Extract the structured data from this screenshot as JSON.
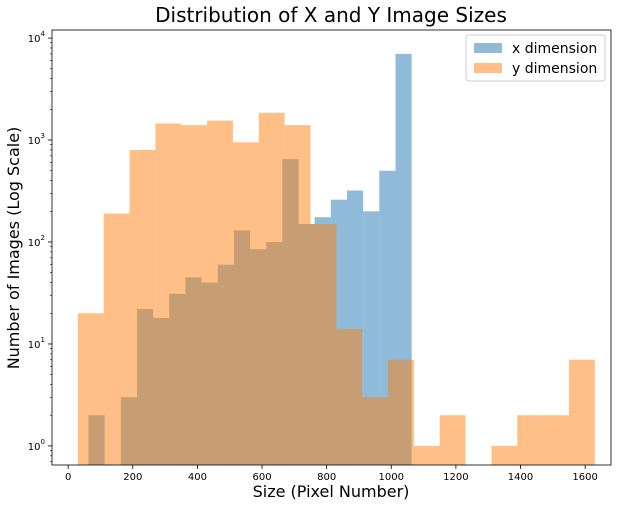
{
  "chart_data": {
    "type": "bar",
    "title": "Distribution of X and Y Image Sizes",
    "xlabel": "Size (Pixel Number)",
    "ylabel": "Number of Images (Log Scale)",
    "yscale": "log",
    "xlim": [
      -50,
      1680
    ],
    "ylim": [
      0.65,
      12000
    ],
    "xticks": [
      0,
      200,
      400,
      600,
      800,
      1000,
      1200,
      1400,
      1600
    ],
    "yticks": [
      {
        "value": 1,
        "base": "10",
        "exp": "0"
      },
      {
        "value": 10,
        "base": "10",
        "exp": "1"
      },
      {
        "value": 100,
        "base": "10",
        "exp": "2"
      },
      {
        "value": 1000,
        "base": "10",
        "exp": "3"
      },
      {
        "value": 10000,
        "base": "10",
        "exp": "4"
      }
    ],
    "legend_position": "top-right",
    "series": [
      {
        "name": "x dimension",
        "color": "#1f77b4",
        "opacity": 0.5,
        "bins": [
          {
            "x0": 63,
            "x1": 113,
            "y": 2
          },
          {
            "x0": 163,
            "x1": 213,
            "y": 3
          },
          {
            "x0": 213,
            "x1": 263,
            "y": 22
          },
          {
            "x0": 263,
            "x1": 313,
            "y": 18
          },
          {
            "x0": 313,
            "x1": 363,
            "y": 31
          },
          {
            "x0": 363,
            "x1": 413,
            "y": 45
          },
          {
            "x0": 413,
            "x1": 463,
            "y": 40
          },
          {
            "x0": 463,
            "x1": 513,
            "y": 60
          },
          {
            "x0": 513,
            "x1": 563,
            "y": 130
          },
          {
            "x0": 563,
            "x1": 613,
            "y": 85
          },
          {
            "x0": 613,
            "x1": 663,
            "y": 100
          },
          {
            "x0": 663,
            "x1": 713,
            "y": 650
          },
          {
            "x0": 713,
            "x1": 763,
            "y": 150
          },
          {
            "x0": 763,
            "x1": 813,
            "y": 175
          },
          {
            "x0": 813,
            "x1": 863,
            "y": 260
          },
          {
            "x0": 863,
            "x1": 913,
            "y": 320
          },
          {
            "x0": 913,
            "x1": 963,
            "y": 200
          },
          {
            "x0": 963,
            "x1": 1013,
            "y": 500
          },
          {
            "x0": 1013,
            "x1": 1063,
            "y": 7000
          }
        ]
      },
      {
        "name": "y dimension",
        "color": "#ff7f0e",
        "opacity": 0.5,
        "bins": [
          {
            "x0": 30,
            "x1": 110,
            "y": 20
          },
          {
            "x0": 110,
            "x1": 190,
            "y": 190
          },
          {
            "x0": 190,
            "x1": 270,
            "y": 800
          },
          {
            "x0": 270,
            "x1": 350,
            "y": 1450
          },
          {
            "x0": 350,
            "x1": 430,
            "y": 1400
          },
          {
            "x0": 430,
            "x1": 510,
            "y": 1550
          },
          {
            "x0": 510,
            "x1": 590,
            "y": 950
          },
          {
            "x0": 590,
            "x1": 670,
            "y": 1850
          },
          {
            "x0": 670,
            "x1": 750,
            "y": 1400
          },
          {
            "x0": 750,
            "x1": 830,
            "y": 150
          },
          {
            "x0": 830,
            "x1": 910,
            "y": 14
          },
          {
            "x0": 910,
            "x1": 990,
            "y": 3
          },
          {
            "x0": 990,
            "x1": 1070,
            "y": 7
          },
          {
            "x0": 1070,
            "x1": 1150,
            "y": 1
          },
          {
            "x0": 1150,
            "x1": 1230,
            "y": 2
          },
          {
            "x0": 1230,
            "x1": 1310,
            "y": 0
          },
          {
            "x0": 1310,
            "x1": 1390,
            "y": 1
          },
          {
            "x0": 1390,
            "x1": 1470,
            "y": 2
          },
          {
            "x0": 1470,
            "x1": 1550,
            "y": 2
          },
          {
            "x0": 1550,
            "x1": 1630,
            "y": 7
          }
        ]
      }
    ]
  }
}
